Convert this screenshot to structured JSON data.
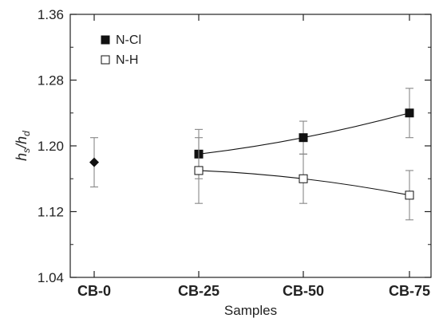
{
  "chart_data": {
    "type": "scatter",
    "title": "",
    "xlabel": "Samples",
    "ylabel": {
      "main": "h",
      "sub1": "s",
      "sep": "/h",
      "sub2": "d"
    },
    "categories": [
      "CB-0",
      "CB-25",
      "CB-50",
      "CB-75"
    ],
    "ylim": [
      1.04,
      1.36
    ],
    "yticks": [
      1.04,
      1.12,
      1.2,
      1.28,
      1.36
    ],
    "ytick_labels": [
      "1.04",
      "1.12",
      "1.20",
      "1.28",
      "1.36"
    ],
    "grid": false,
    "legend_position": "top-left",
    "reference": {
      "category": "CB-0",
      "value": 1.18,
      "err_low": 1.15,
      "err_high": 1.21,
      "marker": "diamond"
    },
    "series": [
      {
        "name": "N-Cl",
        "marker": "filled-square",
        "points": [
          {
            "category": "CB-25",
            "value": 1.19,
            "err_low": 1.16,
            "err_high": 1.22
          },
          {
            "category": "CB-50",
            "value": 1.21,
            "err_low": 1.19,
            "err_high": 1.23
          },
          {
            "category": "CB-75",
            "value": 1.24,
            "err_low": 1.21,
            "err_high": 1.27
          }
        ]
      },
      {
        "name": "N-H",
        "marker": "open-square",
        "points": [
          {
            "category": "CB-25",
            "value": 1.17,
            "err_low": 1.13,
            "err_high": 1.21
          },
          {
            "category": "CB-50",
            "value": 1.16,
            "err_low": 1.13,
            "err_high": 1.19
          },
          {
            "category": "CB-75",
            "value": 1.14,
            "err_low": 1.11,
            "err_high": 1.17
          }
        ]
      }
    ],
    "colors": {
      "axis": "#222222",
      "marker": "#111111",
      "error_bar": "#888888"
    }
  }
}
